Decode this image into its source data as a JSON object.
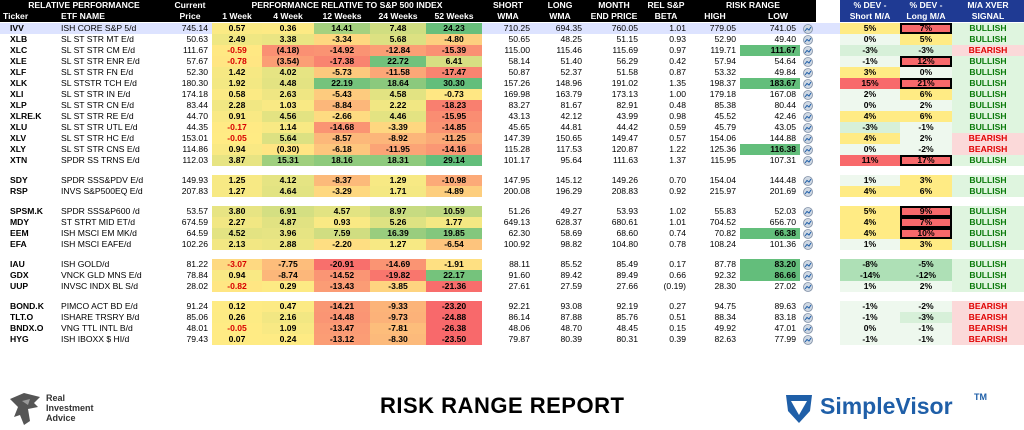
{
  "header": {
    "top": [
      "RELATIVE PERFORMANCE",
      "Current",
      "PERFORMANCE RELATIVE TO S&P 500 INDEX",
      "SHORT",
      "LONG",
      "MONTH",
      "REL S&P",
      "RISK RANGE",
      "% DEV -",
      "% DEV -",
      "M/A XVER"
    ],
    "bottom": [
      "Ticker",
      "ETF NAME",
      "Price",
      "1 Week",
      "4 Week",
      "12 Weeks",
      "24 Weeks",
      "52 Weeks",
      "WMA",
      "WMA",
      "END PRICE",
      "BETA",
      "HIGH",
      "LOW",
      "Short M/A",
      "Long M/A",
      "SIGNAL"
    ]
  },
  "rows": [
    {
      "t": "IVV",
      "n": "ISH CORE S&P 5/d",
      "p": "745.14",
      "w1": "0.57",
      "w4": "0.36",
      "w12": "14.41",
      "w24": "7.48",
      "w52": "24.23",
      "s": "710.25",
      "lg": "694.35",
      "m": "760.05",
      "beta": "1.01",
      "hi": "779.05",
      "lo": "741.05",
      "ds": "5%",
      "dl": "7%",
      "sig": "BULLISH",
      "hl": true
    },
    {
      "t": "XLB",
      "n": "SL ST STR MT E/d",
      "p": "50.63",
      "w1": "2.49",
      "w4": "3.38",
      "w12": "-3.34",
      "w24": "5.68",
      "w52": "-4.80",
      "s": "50.65",
      "lg": "48.25",
      "m": "51.15",
      "beta": "0.93",
      "hi": "52.90",
      "lo": "49.40",
      "ds": "0%",
      "dl": "5%",
      "sig": "BULLISH"
    },
    {
      "t": "XLC",
      "n": "SL ST STR CM E/d",
      "p": "111.67",
      "w1": "-0.59",
      "w4": "(4.18)",
      "w12": "-14.92",
      "w24": "-12.84",
      "w52": "-15.39",
      "s": "115.00",
      "lg": "115.46",
      "m": "115.69",
      "beta": "0.97",
      "hi": "119.71",
      "lo": "111.67",
      "ds": "-3%",
      "dl": "-3%",
      "sig": "BEARISH"
    },
    {
      "t": "XLE",
      "n": "SL ST STR ENR E/d",
      "p": "57.67",
      "w1": "-0.78",
      "w4": "(3.54)",
      "w12": "-17.38",
      "w24": "22.72",
      "w52": "6.41",
      "s": "58.14",
      "lg": "51.40",
      "m": "56.29",
      "beta": "0.42",
      "hi": "57.94",
      "lo": "54.64",
      "ds": "-1%",
      "dl": "12%",
      "sig": "BULLISH"
    },
    {
      "t": "XLF",
      "n": "SL ST STR FN E/d",
      "p": "52.30",
      "w1": "1.42",
      "w4": "4.02",
      "w12": "-5.73",
      "w24": "-11.58",
      "w52": "-17.47",
      "s": "50.87",
      "lg": "52.37",
      "m": "51.58",
      "beta": "0.87",
      "hi": "53.32",
      "lo": "49.84",
      "ds": "3%",
      "dl": "0%",
      "sig": "BULLISH"
    },
    {
      "t": "XLK",
      "n": "SL STSTR TCH E/d",
      "p": "180.30",
      "w1": "1.92",
      "w4": "4.48",
      "w12": "22.19",
      "w24": "18.64",
      "w52": "30.30",
      "s": "157.26",
      "lg": "148.96",
      "m": "191.02",
      "beta": "1.35",
      "hi": "198.37",
      "lo": "183.67",
      "ds": "15%",
      "dl": "21%",
      "sig": "BULLISH"
    },
    {
      "t": "XLI",
      "n": "SL ST STR IN E/d",
      "p": "174.18",
      "w1": "0.58",
      "w4": "2.63",
      "w12": "-5.43",
      "w24": "4.58",
      "w52": "-0.73",
      "s": "169.98",
      "lg": "163.79",
      "m": "173.13",
      "beta": "1.00",
      "hi": "179.18",
      "lo": "167.08",
      "ds": "2%",
      "dl": "6%",
      "sig": "BULLISH"
    },
    {
      "t": "XLP",
      "n": "SL ST STR CN E/d",
      "p": "83.44",
      "w1": "2.28",
      "w4": "1.03",
      "w12": "-8.84",
      "w24": "2.22",
      "w52": "-18.23",
      "s": "83.27",
      "lg": "81.67",
      "m": "82.91",
      "beta": "0.48",
      "hi": "85.38",
      "lo": "80.44",
      "ds": "0%",
      "dl": "2%",
      "sig": "BULLISH"
    },
    {
      "t": "XLRE.K",
      "n": "SL ST STR RE E/d",
      "p": "44.70",
      "w1": "0.91",
      "w4": "4.56",
      "w12": "-2.66",
      "w24": "4.46",
      "w52": "-15.95",
      "s": "43.13",
      "lg": "42.12",
      "m": "43.99",
      "beta": "0.98",
      "hi": "45.52",
      "lo": "42.46",
      "ds": "4%",
      "dl": "6%",
      "sig": "BULLISH"
    },
    {
      "t": "XLU",
      "n": "SL ST STR UTL E/d",
      "p": "44.35",
      "w1": "-0.17",
      "w4": "1.14",
      "w12": "-14.68",
      "w24": "-3.39",
      "w52": "-14.85",
      "s": "45.65",
      "lg": "44.81",
      "m": "44.42",
      "beta": "0.59",
      "hi": "45.79",
      "lo": "43.05",
      "ds": "-3%",
      "dl": "-1%",
      "sig": "BULLISH"
    },
    {
      "t": "XLV",
      "n": "SL ST STR HC E/d",
      "p": "153.01",
      "w1": "-0.05",
      "w4": "5.64",
      "w12": "-8.57",
      "w24": "-8.92",
      "w52": "-11.25",
      "s": "147.39",
      "lg": "150.65",
      "m": "149.47",
      "beta": "0.57",
      "hi": "154.06",
      "lo": "144.88",
      "ds": "4%",
      "dl": "2%",
      "sig": "BEARISH"
    },
    {
      "t": "XLY",
      "n": "SL ST STR CNS E/d",
      "p": "114.86",
      "w1": "0.94",
      "w4": "(0.30)",
      "w12": "-6.18",
      "w24": "-11.95",
      "w52": "-14.16",
      "s": "115.28",
      "lg": "117.53",
      "m": "120.87",
      "beta": "1.22",
      "hi": "125.36",
      "lo": "116.38",
      "ds": "0%",
      "dl": "-2%",
      "sig": "BEARISH"
    },
    {
      "t": "XTN",
      "n": "SPDR SS TRNS E/d",
      "p": "112.03",
      "w1": "3.87",
      "w4": "15.31",
      "w12": "18.16",
      "w24": "18.31",
      "w52": "29.14",
      "s": "101.17",
      "lg": "95.64",
      "m": "111.63",
      "beta": "1.37",
      "hi": "115.95",
      "lo": "107.31",
      "ds": "11%",
      "dl": "17%",
      "sig": "BULLISH"
    },
    {
      "gap": true
    },
    {
      "t": "SDY",
      "n": "SPDR SSS&PDV E/d",
      "p": "149.93",
      "w1": "1.25",
      "w4": "4.12",
      "w12": "-8.37",
      "w24": "1.29",
      "w52": "-10.98",
      "s": "147.95",
      "lg": "145.12",
      "m": "149.26",
      "beta": "0.70",
      "hi": "154.04",
      "lo": "144.48",
      "ds": "1%",
      "dl": "3%",
      "sig": "BULLISH"
    },
    {
      "t": "RSP",
      "n": "INVS S&P500EQ E/d",
      "p": "207.83",
      "w1": "1.27",
      "w4": "4.64",
      "w12": "-3.29",
      "w24": "1.71",
      "w52": "-4.89",
      "s": "200.08",
      "lg": "196.29",
      "m": "208.83",
      "beta": "0.92",
      "hi": "215.97",
      "lo": "201.69",
      "ds": "4%",
      "dl": "6%",
      "sig": "BULLISH"
    },
    {
      "gap": true
    },
    {
      "t": "SPSM.K",
      "n": "SPDR SSS&P600 /d",
      "p": "53.57",
      "w1": "3.80",
      "w4": "6.91",
      "w12": "4.57",
      "w24": "8.97",
      "w52": "10.59",
      "s": "51.26",
      "lg": "49.27",
      "m": "53.93",
      "beta": "1.02",
      "hi": "55.83",
      "lo": "52.03",
      "ds": "5%",
      "dl": "9%",
      "sig": "BULLISH"
    },
    {
      "t": "MDY",
      "n": "ST STRT MID ET/d",
      "p": "674.59",
      "w1": "2.27",
      "w4": "4.87",
      "w12": "0.93",
      "w24": "5.26",
      "w52": "1.77",
      "s": "649.13",
      "lg": "628.37",
      "m": "680.61",
      "beta": "1.01",
      "hi": "704.52",
      "lo": "656.70",
      "ds": "4%",
      "dl": "7%",
      "sig": "BULLISH"
    },
    {
      "t": "EEM",
      "n": "ISH MSCI EM MK/d",
      "p": "64.59",
      "w1": "4.52",
      "w4": "3.96",
      "w12": "7.59",
      "w24": "16.39",
      "w52": "19.85",
      "s": "62.30",
      "lg": "58.69",
      "m": "68.60",
      "beta": "0.74",
      "hi": "70.82",
      "lo": "66.38",
      "ds": "4%",
      "dl": "10%",
      "sig": "BULLISH"
    },
    {
      "t": "EFA",
      "n": "ISH MSCI EAFE/d",
      "p": "102.26",
      "w1": "2.13",
      "w4": "2.88",
      "w12": "-2.20",
      "w24": "1.27",
      "w52": "-6.54",
      "s": "100.92",
      "lg": "98.82",
      "m": "104.80",
      "beta": "0.78",
      "hi": "108.24",
      "lo": "101.36",
      "ds": "1%",
      "dl": "3%",
      "sig": "BULLISH"
    },
    {
      "gap": true
    },
    {
      "t": "IAU",
      "n": "ISH GOLD/d",
      "p": "81.22",
      "w1": "-3.07",
      "w4": "-7.75",
      "w12": "-20.91",
      "w24": "-14.69",
      "w52": "-1.91",
      "s": "88.11",
      "lg": "85.52",
      "m": "85.49",
      "beta": "0.17",
      "hi": "87.78",
      "lo": "83.20",
      "ds": "-8%",
      "dl": "-5%",
      "sig": "BULLISH"
    },
    {
      "t": "GDX",
      "n": "VNCK GLD MNS E/d",
      "p": "78.84",
      "w1": "0.94",
      "w4": "-8.74",
      "w12": "-14.52",
      "w24": "-19.82",
      "w52": "22.17",
      "s": "91.60",
      "lg": "89.42",
      "m": "89.49",
      "beta": "0.66",
      "hi": "92.32",
      "lo": "86.66",
      "ds": "-14%",
      "dl": "-12%",
      "sig": "BULLISH"
    },
    {
      "t": "UUP",
      "n": "INVSC INDX BL S/d",
      "p": "28.02",
      "w1": "-0.82",
      "w4": "0.29",
      "w12": "-13.43",
      "w24": "-3.85",
      "w52": "-21.36",
      "s": "27.61",
      "lg": "27.59",
      "m": "27.66",
      "beta": "(0.19)",
      "hi": "28.30",
      "lo": "27.02",
      "ds": "1%",
      "dl": "2%",
      "sig": "BULLISH"
    },
    {
      "gap": true
    },
    {
      "t": "BOND.K",
      "n": "PIMCO ACT BD E/d",
      "p": "91.24",
      "w1": "0.12",
      "w4": "0.47",
      "w12": "-14.21",
      "w24": "-9.33",
      "w52": "-23.20",
      "s": "92.21",
      "lg": "93.08",
      "m": "92.19",
      "beta": "0.27",
      "hi": "94.75",
      "lo": "89.63",
      "ds": "-1%",
      "dl": "-2%",
      "sig": "BEARISH"
    },
    {
      "t": "TLT.O",
      "n": "ISHARE TRSRY B/d",
      "p": "85.06",
      "w1": "0.26",
      "w4": "2.16",
      "w12": "-14.48",
      "w24": "-9.73",
      "w52": "-24.88",
      "s": "86.14",
      "lg": "87.88",
      "m": "85.76",
      "beta": "0.51",
      "hi": "88.34",
      "lo": "83.18",
      "ds": "-1%",
      "dl": "-3%",
      "sig": "BEARISH"
    },
    {
      "t": "BNDX.O",
      "n": "VNG TTL INTL B/d",
      "p": "48.01",
      "w1": "-0.05",
      "w4": "1.09",
      "w12": "-13.47",
      "w24": "-7.81",
      "w52": "-26.38",
      "s": "48.06",
      "lg": "48.70",
      "m": "48.45",
      "beta": "0.15",
      "hi": "49.92",
      "lo": "47.01",
      "ds": "0%",
      "dl": "-1%",
      "sig": "BEARISH"
    },
    {
      "t": "HYG",
      "n": "ISH IBOXX $ HI/d",
      "p": "79.43",
      "w1": "0.07",
      "w4": "0.24",
      "w12": "-13.12",
      "w24": "-8.30",
      "w52": "-23.50",
      "s": "79.87",
      "lg": "80.39",
      "m": "80.31",
      "beta": "0.39",
      "hi": "82.63",
      "lo": "77.99",
      "ds": "-1%",
      "dl": "-1%",
      "sig": "BEARISH"
    }
  ],
  "footer": {
    "ria_line1": "Real",
    "ria_line2": "Investment",
    "ria_line3": "Advice",
    "title": "RISK RANGE REPORT",
    "sv_name": "SimpleVisor",
    "sv_tm": "TM"
  },
  "colors": {
    "green": "#63be7b",
    "yellow": "#ffeb84",
    "red": "#f8696b",
    "header_blue": "#1f3a93",
    "bull_text": "#0a7a0a",
    "bear_text": "#e00000"
  }
}
